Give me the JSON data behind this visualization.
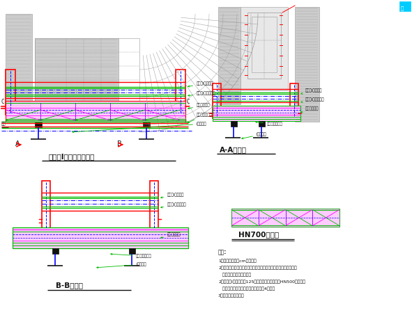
{
  "bg_color": "#ffffff",
  "red": "#ff0000",
  "green": "#00bb00",
  "blue": "#0000ff",
  "magenta": "#ff00ff",
  "dark": "#111111",
  "gray": "#999999",
  "lgray": "#cccccc",
  "dgray": "#666666",
  "cyan": "#00ccff",
  "purple": "#cc00cc",
  "s1_title": "主纵梁I平番托架立面图",
  "s2_title": "A-A断面图",
  "s3_title": "B-B断面图",
  "s4_title": "HN700平梁图",
  "note_title": "说明:",
  "note1": "1、图中单位均为cm为单位。",
  "note2": "2、前支点悬臂施工行车梁板上各扣件均不低于规范要求，参考平梁",
  "note3": "   锁定施工技术平梁书处。",
  "note4": "2、主纵梁I平梁高度为125件，连接平梁托盘弓锁HN500系流圈，",
  "note5": "   将密度地平梁锁封，密布道道封闭口4锁封。",
  "note6": "3、本样品加工一件。",
  "ann1": "接受梁I平梁轨道",
  "ann2": "接受梁I平梁轨道轨",
  "ann3": "挂篮横移轨道",
  "ann4": "挂篮横移轨道梁",
  "ann5": "I型轨道梁"
}
